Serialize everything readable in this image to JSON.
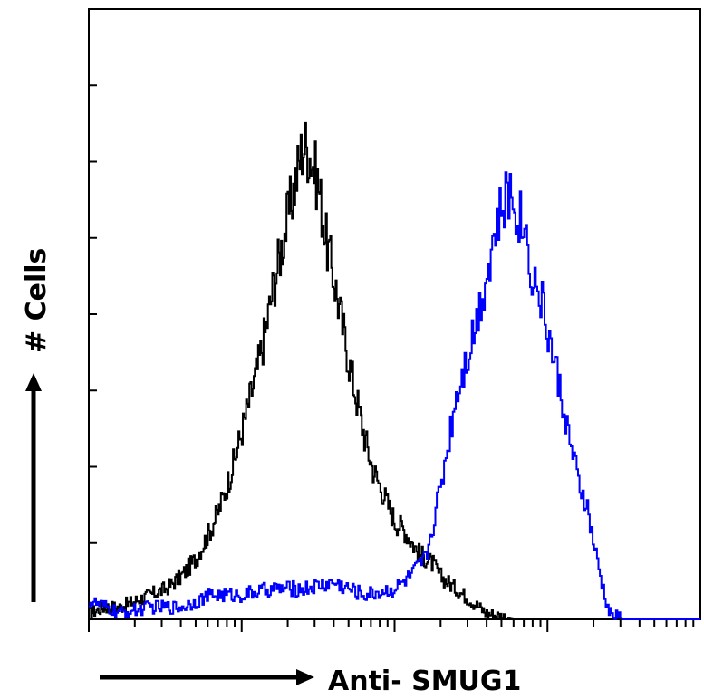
{
  "chart_data": {
    "type": "line",
    "title": "",
    "xlabel": "Anti- SMUG1",
    "ylabel": "# Cells",
    "x_scale": "log",
    "xlim": [
      0,
      4
    ],
    "ylim": [
      0,
      100
    ],
    "grid": false,
    "legend": "none",
    "series": [
      {
        "color": "#000000",
        "x": [
          0.0,
          0.1,
          0.2,
          0.3,
          0.4,
          0.5,
          0.6,
          0.7,
          0.8,
          0.85,
          0.9,
          0.95,
          1.0,
          1.05,
          1.1,
          1.15,
          1.2,
          1.25,
          1.3,
          1.35,
          1.4,
          1.45,
          1.5,
          1.55,
          1.6,
          1.65,
          1.7,
          1.75,
          1.8,
          1.85,
          1.9,
          1.95,
          2.0,
          2.05,
          2.1,
          2.15,
          2.2,
          2.25,
          2.3,
          2.35,
          2.4,
          2.5,
          2.6,
          2.7,
          2.8,
          2.9,
          3.0
        ],
        "y": [
          1,
          2,
          2,
          3,
          4,
          5,
          7,
          10,
          15,
          18,
          22,
          26,
          31,
          36,
          41,
          47,
          54,
          60,
          66,
          72,
          78,
          76,
          71,
          62,
          56,
          49,
          42,
          36,
          30,
          25,
          22,
          19,
          16,
          15,
          13,
          11,
          10,
          9,
          7,
          6,
          5,
          3,
          1,
          0.5,
          0,
          0,
          0
        ]
      },
      {
        "color": "#0000ff",
        "x": [
          0.0,
          0.2,
          0.4,
          0.6,
          0.8,
          1.0,
          1.2,
          1.4,
          1.6,
          1.8,
          2.0,
          2.1,
          2.2,
          2.3,
          2.4,
          2.5,
          2.55,
          2.6,
          2.65,
          2.7,
          2.75,
          2.8,
          2.85,
          2.9,
          2.95,
          3.0,
          3.05,
          3.1,
          3.15,
          3.2,
          3.25,
          3.3,
          3.35,
          3.4,
          3.5,
          3.6,
          3.7,
          3.8,
          3.9,
          4.0
        ],
        "y": [
          3,
          1,
          2,
          2,
          4,
          4,
          5,
          5,
          6,
          4,
          5,
          7,
          10,
          22,
          37,
          46,
          51,
          57,
          63,
          67,
          70,
          67,
          64,
          56,
          53,
          47,
          41,
          35,
          28,
          22,
          19,
          12,
          6,
          1,
          0,
          0,
          0,
          0,
          0,
          0
        ]
      }
    ]
  },
  "axis_arrows": {
    "x_arrow_color": "#000000",
    "y_arrow_color": "#000000"
  }
}
